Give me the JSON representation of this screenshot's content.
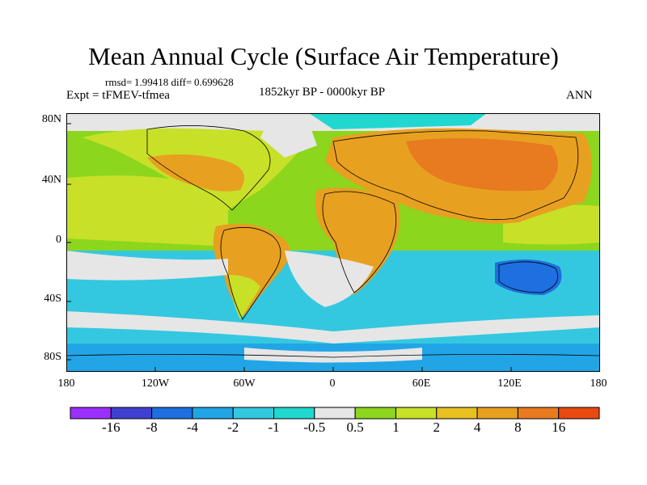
{
  "title": "Mean Annual Cycle (Surface Air Temperature)",
  "stats": {
    "rmsd_label": "rmsd=",
    "rmsd": "1.99418",
    "diff_label": "diff=",
    "diff": "0.699628"
  },
  "experiment": "Expt = tFMEV-tfmea",
  "period": "1852kyr BP - 0000kyr BP",
  "season": "ANN",
  "lat_labels": [
    "80N",
    "40N",
    "0",
    "40S",
    "80S"
  ],
  "lon_labels": [
    "180",
    "120W",
    "60W",
    "0",
    "60E",
    "120E",
    "180"
  ],
  "colorbar": {
    "colors": [
      "#9b30ff",
      "#4040d0",
      "#1e6fe0",
      "#22a5e6",
      "#33c8e0",
      "#20d8d0",
      "#e6e6e6",
      "#8cd61e",
      "#c8e028",
      "#e8c020",
      "#e8a020",
      "#e87a20",
      "#e84a10"
    ],
    "labels": [
      "-16",
      "-8",
      "-4",
      "-2",
      "-1",
      "-0.5",
      "0.5",
      "1",
      "2",
      "4",
      "8",
      "16"
    ]
  }
}
